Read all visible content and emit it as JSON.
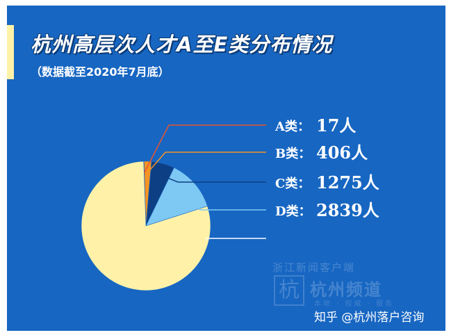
{
  "title": "杭州高层次人才A至E类分布情况",
  "subtitle": "（数据截至2020年7月底）",
  "watermark": {
    "top": "浙江新闻客户端",
    "logo_glyph": "杭",
    "main": "杭州频道",
    "slogan": "本地 · 权威 · 服务"
  },
  "attribution": "知乎 @杭州落户咨询",
  "colors": {
    "panel": "#1766c2",
    "accent": "#fff2a8"
  },
  "chart_data": {
    "type": "pie",
    "title": "杭州高层次人才A至E类分布情况",
    "slices": [
      {
        "label": "A类",
        "value": 17,
        "value_text": "17人",
        "color": "#e9542d"
      },
      {
        "label": "B类",
        "value": 406,
        "value_text": "406人",
        "color": "#f39323"
      },
      {
        "label": "C类",
        "value": 1275,
        "value_text": "1275人",
        "color": "#0d3f85"
      },
      {
        "label": "D类",
        "value": 2839,
        "value_text": "2839人",
        "color": "#7ec8f4"
      },
      {
        "label": "",
        "value": 17463,
        "value_text": "",
        "color": "#fff2a8"
      }
    ],
    "legend_position": "right"
  }
}
